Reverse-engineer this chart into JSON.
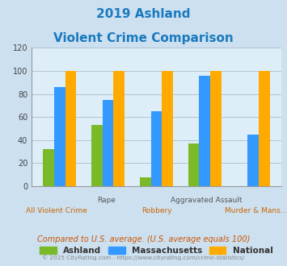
{
  "title_line1": "2019 Ashland",
  "title_line2": "Violent Crime Comparison",
  "title_color": "#1a7abf",
  "categories": [
    "All Violent Crime",
    "Rape",
    "Robbery",
    "Aggravated Assault",
    "Murder & Mans..."
  ],
  "series": {
    "Ashland": {
      "color": "#7aba28",
      "values": [
        32,
        53,
        8,
        37,
        0
      ]
    },
    "Massachusetts": {
      "color": "#3399ff",
      "values": [
        86,
        75,
        65,
        96,
        45
      ]
    },
    "National": {
      "color": "#ffaa00",
      "values": [
        100,
        100,
        100,
        100,
        100
      ]
    }
  },
  "ylim": [
    0,
    120
  ],
  "yticks": [
    0,
    20,
    40,
    60,
    80,
    100,
    120
  ],
  "background_color": "#cce0f0",
  "plot_bg_color": "#ddeef8",
  "legend_labels": [
    "Ashland",
    "Massachusetts",
    "National"
  ],
  "legend_colors": [
    "#7aba28",
    "#3399ff",
    "#ffaa00"
  ],
  "footnote1": "Compared to U.S. average. (U.S. average equals 100)",
  "footnote2": "© 2025 CityRating.com - https://www.cityrating.com/crime-statistics/",
  "footnote1_color": "#cc5500",
  "footnote2_color": "#888888"
}
